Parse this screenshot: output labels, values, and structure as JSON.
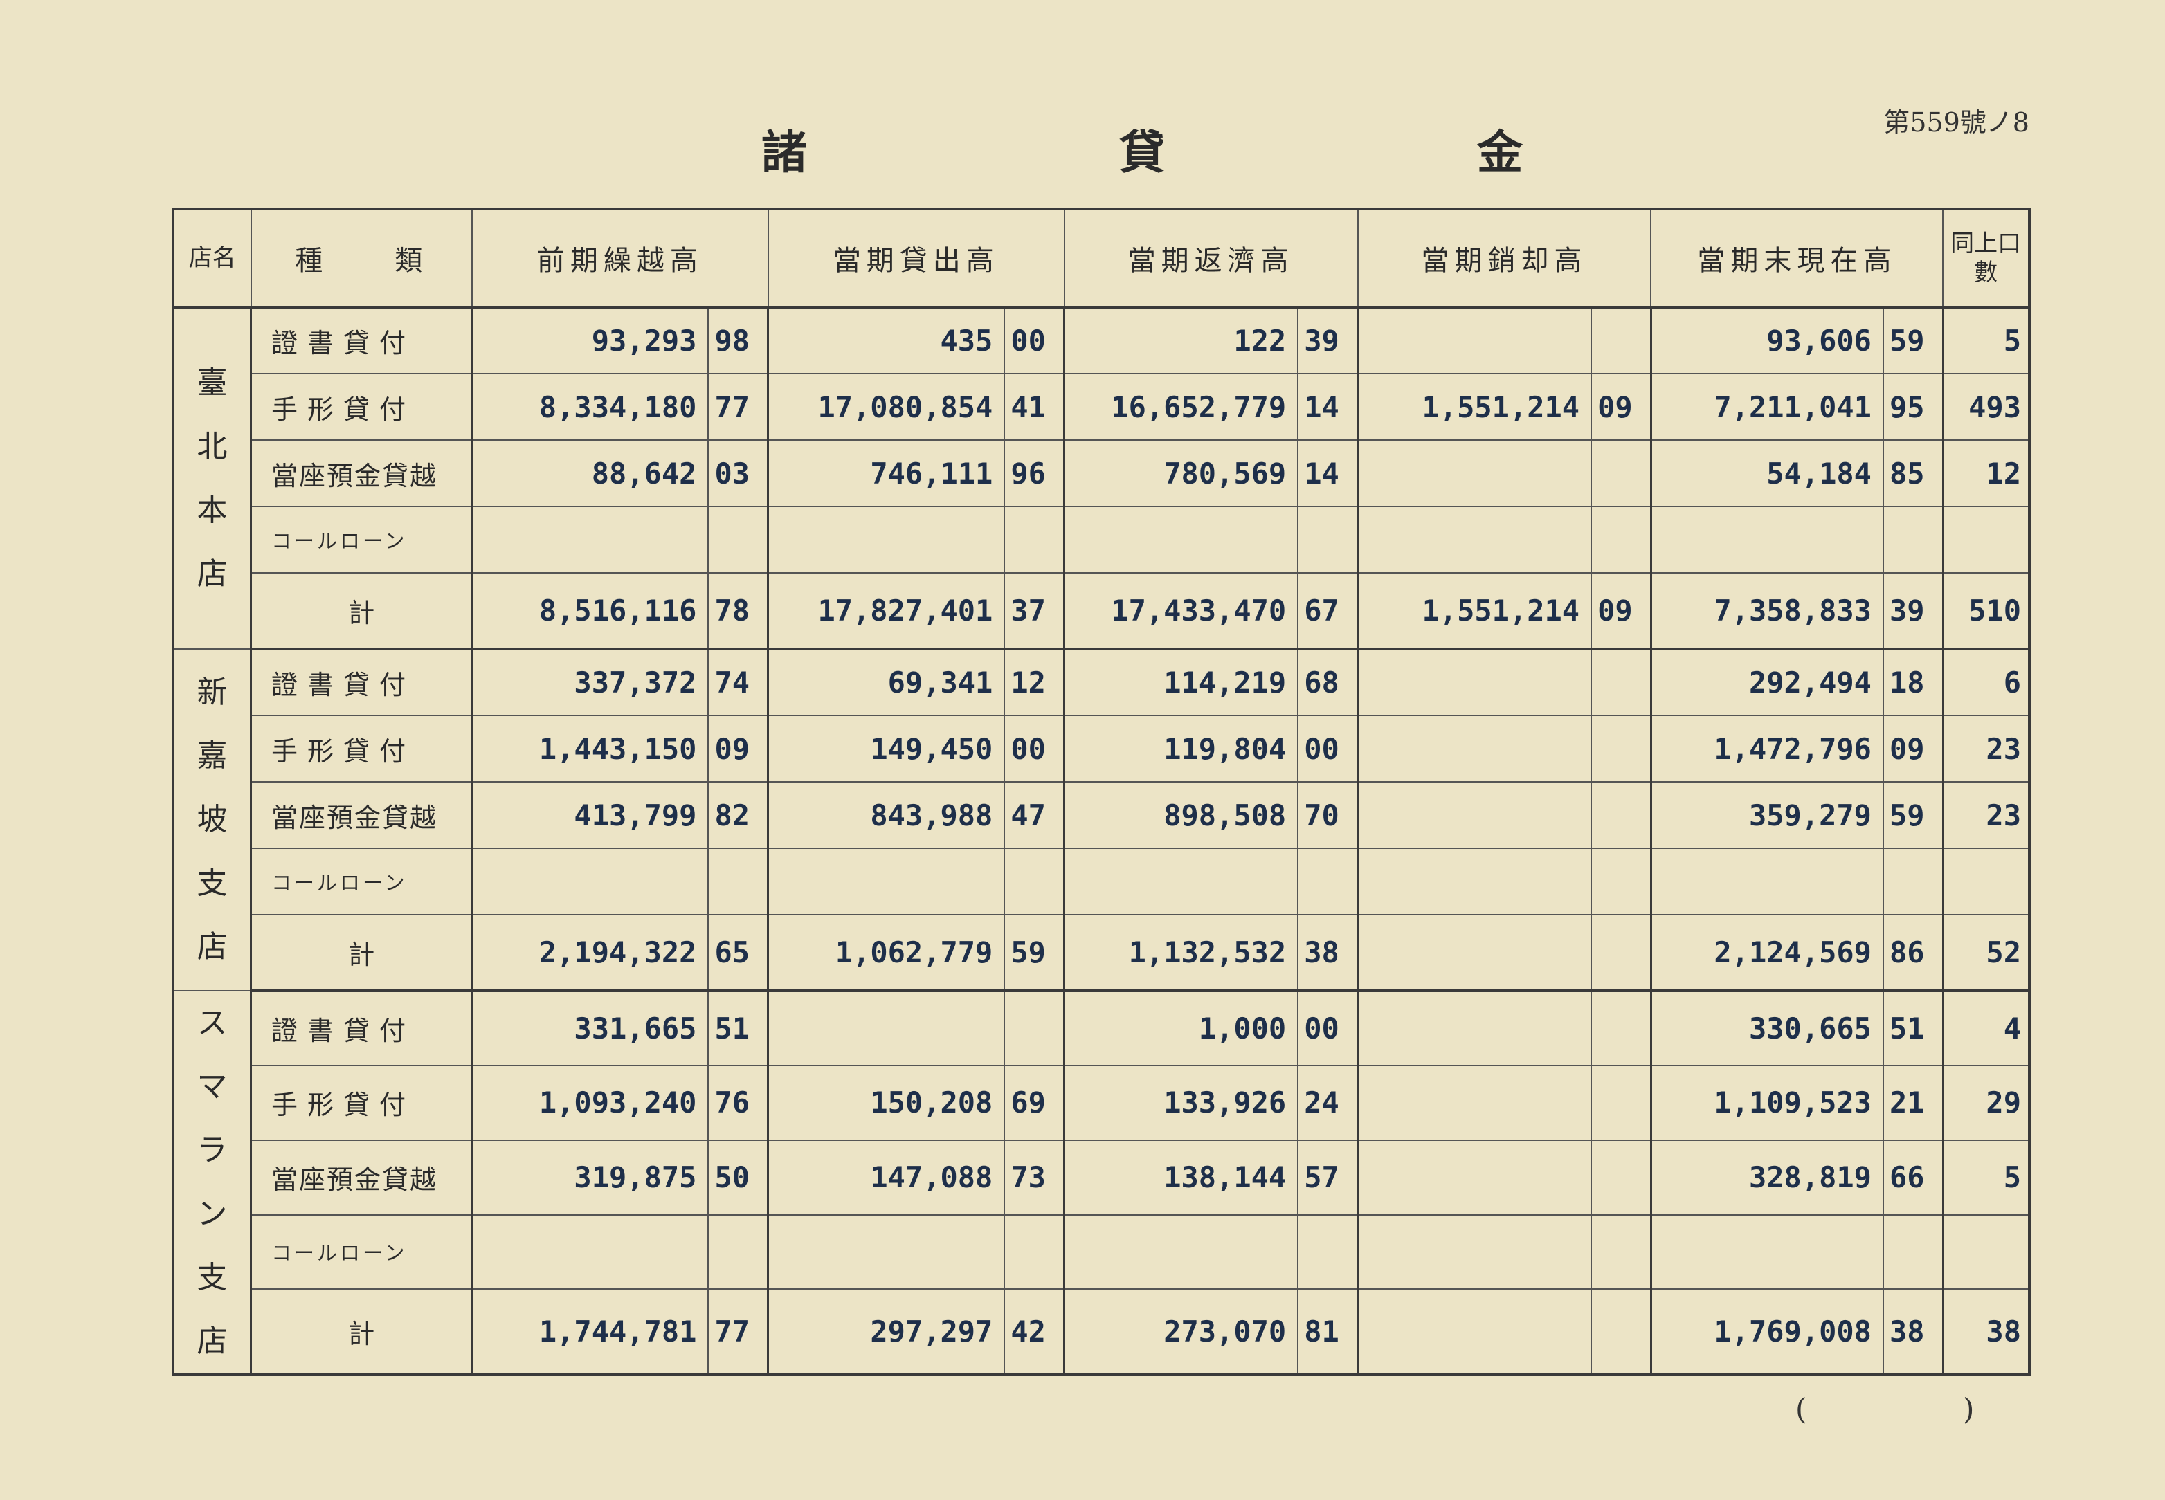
{
  "page_number": "第559號ノ8",
  "title": [
    "諸",
    "貸",
    "金"
  ],
  "headers": {
    "branch": "店名",
    "kind": "種　　類",
    "prev_balance": "前期繰越高",
    "loaned": "當期貸出高",
    "repaid": "當期返濟高",
    "written_off": "當期銷却高",
    "end_balance": "當期末現在高",
    "count": "同上口數"
  },
  "groups": [
    {
      "branch": "臺北本店",
      "rows": [
        {
          "kind": "證書貸付",
          "prev": [
            "93,293",
            "98"
          ],
          "loan": [
            "435",
            "00"
          ],
          "repay": [
            "122",
            "39"
          ],
          "writeoff": [
            "",
            ""
          ],
          "end": [
            "93,606",
            "59"
          ],
          "count": "5"
        },
        {
          "kind": "手形貸付",
          "prev": [
            "8,334,180",
            "77"
          ],
          "loan": [
            "17,080,854",
            "41"
          ],
          "repay": [
            "16,652,779",
            "14"
          ],
          "writeoff": [
            "1,551,214",
            "09"
          ],
          "end": [
            "7,211,041",
            "95"
          ],
          "count": "493"
        },
        {
          "kind": "當座預金貸越",
          "prev": [
            "88,642",
            "03"
          ],
          "loan": [
            "746,111",
            "96"
          ],
          "repay": [
            "780,569",
            "14"
          ],
          "writeoff": [
            "",
            ""
          ],
          "end": [
            "54,184",
            "85"
          ],
          "count": "12"
        },
        {
          "kind": "コールローン",
          "prev": [
            "",
            ""
          ],
          "loan": [
            "",
            ""
          ],
          "repay": [
            "",
            ""
          ],
          "writeoff": [
            "",
            ""
          ],
          "end": [
            "",
            ""
          ],
          "count": ""
        }
      ],
      "total": {
        "kind": "計",
        "prev": [
          "8,516,116",
          "78"
        ],
        "loan": [
          "17,827,401",
          "37"
        ],
        "repay": [
          "17,433,470",
          "67"
        ],
        "writeoff": [
          "1,551,214",
          "09"
        ],
        "end": [
          "7,358,833",
          "39"
        ],
        "count": "510"
      }
    },
    {
      "branch": "新嘉坡支店",
      "rows": [
        {
          "kind": "證書貸付",
          "prev": [
            "337,372",
            "74"
          ],
          "loan": [
            "69,341",
            "12"
          ],
          "repay": [
            "114,219",
            "68"
          ],
          "writeoff": [
            "",
            ""
          ],
          "end": [
            "292,494",
            "18"
          ],
          "count": "6"
        },
        {
          "kind": "手形貸付",
          "prev": [
            "1,443,150",
            "09"
          ],
          "loan": [
            "149,450",
            "00"
          ],
          "repay": [
            "119,804",
            "00"
          ],
          "writeoff": [
            "",
            ""
          ],
          "end": [
            "1,472,796",
            "09"
          ],
          "count": "23"
        },
        {
          "kind": "當座預金貸越",
          "prev": [
            "413,799",
            "82"
          ],
          "loan": [
            "843,988",
            "47"
          ],
          "repay": [
            "898,508",
            "70"
          ],
          "writeoff": [
            "",
            ""
          ],
          "end": [
            "359,279",
            "59"
          ],
          "count": "23"
        },
        {
          "kind": "コールローン",
          "prev": [
            "",
            ""
          ],
          "loan": [
            "",
            ""
          ],
          "repay": [
            "",
            ""
          ],
          "writeoff": [
            "",
            ""
          ],
          "end": [
            "",
            ""
          ],
          "count": ""
        }
      ],
      "total": {
        "kind": "計",
        "prev": [
          "2,194,322",
          "65"
        ],
        "loan": [
          "1,062,779",
          "59"
        ],
        "repay": [
          "1,132,532",
          "38"
        ],
        "writeoff": [
          "",
          ""
        ],
        "end": [
          "2,124,569",
          "86"
        ],
        "count": "52"
      }
    },
    {
      "branch": "スマラン支店",
      "rows": [
        {
          "kind": "證書貸付",
          "prev": [
            "331,665",
            "51"
          ],
          "loan": [
            "",
            ""
          ],
          "repay": [
            "1,000",
            "00"
          ],
          "writeoff": [
            "",
            ""
          ],
          "end": [
            "330,665",
            "51"
          ],
          "count": "4"
        },
        {
          "kind": "手形貸付",
          "prev": [
            "1,093,240",
            "76"
          ],
          "loan": [
            "150,208",
            "69"
          ],
          "repay": [
            "133,926",
            "24"
          ],
          "writeoff": [
            "",
            ""
          ],
          "end": [
            "1,109,523",
            "21"
          ],
          "count": "29"
        },
        {
          "kind": "當座預金貸越",
          "prev": [
            "319,875",
            "50"
          ],
          "loan": [
            "147,088",
            "73"
          ],
          "repay": [
            "138,144",
            "57"
          ],
          "writeoff": [
            "",
            ""
          ],
          "end": [
            "328,819",
            "66"
          ],
          "count": "5"
        },
        {
          "kind": "コールローン",
          "prev": [
            "",
            ""
          ],
          "loan": [
            "",
            ""
          ],
          "repay": [
            "",
            ""
          ],
          "writeoff": [
            "",
            ""
          ],
          "end": [
            "",
            ""
          ],
          "count": ""
        }
      ],
      "total": {
        "kind": "計",
        "prev": [
          "1,744,781",
          "77"
        ],
        "loan": [
          "297,297",
          "42"
        ],
        "repay": [
          "273,070",
          "81"
        ],
        "writeoff": [
          "",
          ""
        ],
        "end": [
          "1,769,008",
          "38"
        ],
        "count": "38"
      }
    }
  ],
  "footer_paren": [
    "(",
    ")"
  ]
}
